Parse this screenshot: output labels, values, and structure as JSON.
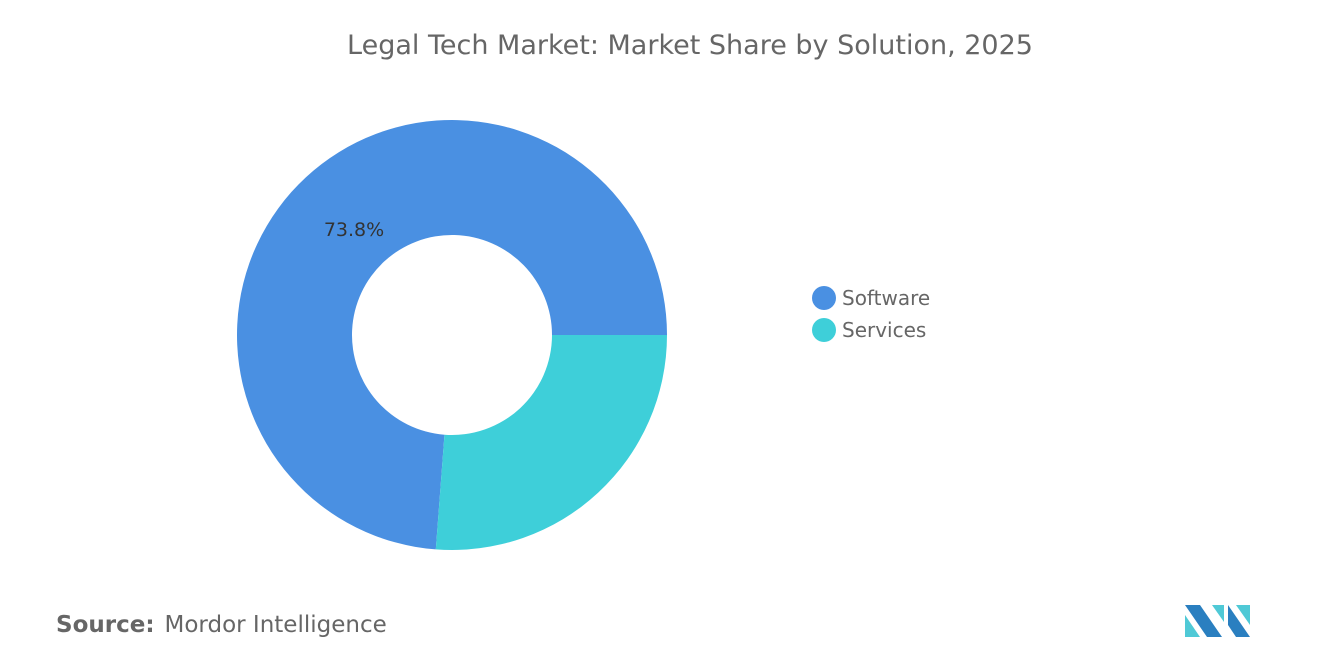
{
  "chart_data": {
    "type": "pie",
    "variant": "donut",
    "title": "Legal Tech Market: Market Share by Solution, 2025",
    "categories": [
      "Software",
      "Services"
    ],
    "values": [
      73.8,
      26.2
    ],
    "unit": "%",
    "colors": [
      "#4a90e2",
      "#3ecfd9"
    ],
    "data_labels": [
      "73.8%",
      ""
    ],
    "legend": {
      "placement": "right",
      "entries": [
        "Software",
        "Services"
      ]
    }
  },
  "source": {
    "label": "Source:",
    "value": "Mordor Intelligence"
  },
  "logo": {
    "name": "mordor-intelligence-logo",
    "colors": [
      "#2a7fc0",
      "#4fc9d6"
    ]
  }
}
